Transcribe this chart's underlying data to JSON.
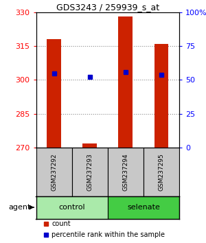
{
  "title": "GDS3243 / 259939_s_at",
  "samples": [
    "GSM237292",
    "GSM237293",
    "GSM237294",
    "GSM237295"
  ],
  "counts": [
    318,
    272,
    328,
    316
  ],
  "percentiles": [
    55,
    52,
    56,
    54
  ],
  "y_min": 270,
  "y_max": 330,
  "y_ticks": [
    270,
    285,
    300,
    315,
    330
  ],
  "y2_ticks": [
    0,
    25,
    50,
    75,
    100
  ],
  "groups": [
    {
      "label": "control",
      "samples": [
        0,
        1
      ],
      "color": "#AAEAAA"
    },
    {
      "label": "selenate",
      "samples": [
        2,
        3
      ],
      "color": "#44CC44"
    }
  ],
  "bar_color": "#CC2200",
  "dot_color": "#0000CC",
  "bar_width": 0.4,
  "agent_label": "agent",
  "legend_count_label": "count",
  "legend_pct_label": "percentile rank within the sample",
  "bg_plot": "#FFFFFF",
  "bg_sample_box": "#C8C8C8",
  "dotted_grid_color": "#888888"
}
